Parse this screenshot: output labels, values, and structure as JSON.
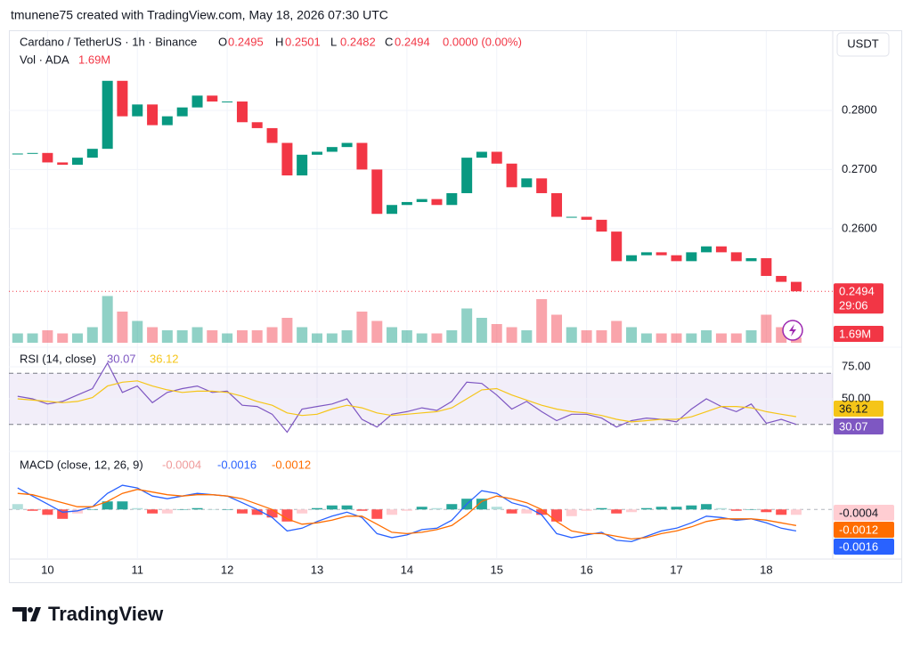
{
  "header": {
    "caption": "tmunene75 created with TradingView.com, May 18, 2026 07:30 UTC",
    "logo": "TradingView"
  },
  "chart_data": [
    {
      "type": "candlestick",
      "title": "Cardano / TetherUS · 1h · Binance",
      "currency": "USDT",
      "ohlc": [
        {
          "key": "O",
          "value": 0.2495
        },
        {
          "key": "H",
          "value": 0.2501
        },
        {
          "key": "L",
          "value": 0.2482
        },
        {
          "key": "C",
          "value": 0.2494
        }
      ],
      "change": "0.0000 (0.00%)",
      "volume_title": "Vol · ADA",
      "volume_last_label": "1.69M",
      "countdown": "29:06",
      "x": [
        9.667,
        9.833,
        10,
        10.167,
        10.333,
        10.5,
        10.667,
        10.833,
        11,
        11.167,
        11.333,
        11.5,
        11.667,
        11.833,
        12,
        12.167,
        12.333,
        12.5,
        12.667,
        12.833,
        13,
        13.167,
        13.333,
        13.5,
        13.667,
        13.833,
        14,
        14.167,
        14.333,
        14.5,
        14.667,
        14.833,
        15,
        15.167,
        15.333,
        15.5,
        15.667,
        15.833,
        16,
        16.167,
        16.333,
        16.5,
        16.667,
        16.833,
        17,
        17.167,
        17.333,
        17.5,
        17.667,
        17.833,
        18,
        18.167,
        18.333
      ],
      "values": [
        0.2727,
        0.2728,
        0.2712,
        0.2708,
        0.272,
        0.2735,
        0.285,
        0.279,
        0.281,
        0.2775,
        0.279,
        0.2805,
        0.2825,
        0.2815,
        0.2815,
        0.278,
        0.277,
        0.2745,
        0.269,
        0.2725,
        0.273,
        0.2738,
        0.2745,
        0.27,
        0.2625,
        0.264,
        0.2645,
        0.265,
        0.264,
        0.266,
        0.272,
        0.273,
        0.271,
        0.267,
        0.2685,
        0.266,
        0.262,
        0.262,
        0.2615,
        0.2595,
        0.2545,
        0.2555,
        0.256,
        0.2555,
        0.2545,
        0.256,
        0.257,
        0.256,
        0.2545,
        0.255,
        0.252,
        0.251,
        0.2494
      ],
      "volume": [
        3,
        3,
        4,
        3,
        3,
        5,
        15,
        10,
        7,
        5,
        4,
        4,
        5,
        4,
        3,
        4,
        4,
        5,
        8,
        5,
        3,
        3,
        4,
        10,
        7,
        5,
        4,
        3,
        3,
        4,
        11,
        8,
        6,
        5,
        4,
        14,
        9,
        5,
        4,
        4,
        7,
        5,
        3,
        3,
        3,
        3,
        4,
        3,
        3,
        4,
        9,
        5,
        1.69
      ],
      "up_color": "#089981",
      "down_color": "#f23645",
      "xlim": [
        9.57,
        18.74
      ],
      "xticks": [
        10,
        11,
        12,
        13,
        14,
        15,
        16,
        17,
        18
      ],
      "ylim": [
        0.2407,
        0.2934
      ],
      "yticks": [
        {
          "value": 0.28,
          "label": "0.2800"
        },
        {
          "value": 0.27,
          "label": "0.2700"
        },
        {
          "value": 0.26,
          "label": "0.2600"
        }
      ],
      "grid": true
    },
    {
      "type": "rsi",
      "title": "RSI (14, close)",
      "ylim": [
        13.9,
        86.8
      ],
      "yticks": [
        {
          "value": 75,
          "label": "75.00"
        },
        {
          "value": 50,
          "label": "50.00"
        }
      ],
      "bands": [
        70,
        30
      ],
      "series": [
        {
          "color": "#7e57c2",
          "values": [
            52,
            50,
            46,
            48,
            53,
            58,
            78,
            55,
            60,
            47,
            55,
            58,
            60,
            55,
            56,
            45,
            44,
            38,
            24,
            42,
            44,
            46,
            50,
            34,
            28,
            38,
            40,
            43,
            41,
            48,
            63,
            62,
            53,
            42,
            48,
            40,
            33,
            38,
            38,
            35,
            28,
            33,
            35,
            34,
            32,
            42,
            50,
            44,
            40,
            46,
            31,
            34,
            30.07
          ]
        },
        {
          "color": "#f5c518",
          "values": [
            50,
            49,
            48,
            47,
            48,
            51,
            60,
            63,
            64,
            60,
            57,
            55,
            56,
            56,
            55,
            52,
            48,
            45,
            39,
            37,
            38,
            42,
            45,
            43,
            39,
            37,
            38,
            39,
            40,
            43,
            50,
            57,
            58,
            53,
            49,
            45,
            42,
            40,
            39,
            37,
            34,
            32,
            33,
            34,
            34,
            36,
            40,
            44,
            44,
            43,
            40,
            38,
            36.12
          ]
        }
      ]
    },
    {
      "type": "macd",
      "title": "MACD (close, 12, 26, 9)",
      "ylim": [
        -0.0037,
        0.0038
      ],
      "series": [
        {
          "color": "#ef9a9a",
          "values": [
            0.0004,
            -0.0001,
            -0.0004,
            -0.0007,
            -0.0003,
            0,
            0.0006,
            0.0006,
            0.0001,
            -0.0003,
            -0.0003,
            0,
            0.0001,
            0,
            0,
            -0.0003,
            -0.0004,
            -0.0006,
            -0.0009,
            -0.0003,
            0.0001,
            0.0003,
            0.0003,
            -0.0001,
            -0.0007,
            -0.0004,
            -0.0001,
            0.0002,
            0.0001,
            0.0004,
            0.0008,
            0.0008,
            0.0002,
            -0.0003,
            -0.0003,
            -0.0004,
            -0.0009,
            -0.0005,
            -0.0001,
            0.0001,
            -0.0003,
            -0.0002,
            0.0001,
            0.0002,
            0.0002,
            0.0003,
            0.0004,
            0.0001,
            -0.0001,
            0,
            -0.0002,
            -0.0004,
            -0.0004
          ]
        },
        {
          "color": "#2962ff",
          "values": [
            0.0016,
            0.001,
            0.0004,
            -0.0002,
            -0.0001,
            0.0002,
            0.0012,
            0.0018,
            0.0016,
            0.001,
            0.0008,
            0.001,
            0.0012,
            0.0011,
            0.001,
            0.0005,
            0,
            -0.0006,
            -0.0016,
            -0.0014,
            -0.0009,
            -0.0005,
            -0.0002,
            -0.0006,
            -0.0018,
            -0.0021,
            -0.0019,
            -0.0015,
            -0.0014,
            -0.0008,
            0.0004,
            0.0014,
            0.0012,
            0.0005,
            0.0002,
            -0.0004,
            -0.0018,
            -0.0021,
            -0.0019,
            -0.0017,
            -0.0023,
            -0.0024,
            -0.002,
            -0.0016,
            -0.0014,
            -0.001,
            -0.0005,
            -0.0006,
            -0.0008,
            -0.0007,
            -0.001,
            -0.0014,
            -0.0016
          ]
        },
        {
          "color": "#ff6d00",
          "values": [
            0.0012,
            0.0011,
            0.0008,
            0.0005,
            0.0002,
            0.0002,
            0.0006,
            0.0012,
            0.0015,
            0.0013,
            0.0011,
            0.001,
            0.0011,
            0.0011,
            0.001,
            0.0008,
            0.0004,
            0,
            -0.0007,
            -0.0011,
            -0.001,
            -0.0008,
            -0.0005,
            -0.0005,
            -0.0011,
            -0.0017,
            -0.0018,
            -0.0017,
            -0.0015,
            -0.0012,
            -0.0004,
            0.0006,
            0.001,
            0.0008,
            0.0005,
            0,
            -0.0009,
            -0.0016,
            -0.0018,
            -0.0018,
            -0.002,
            -0.0022,
            -0.0021,
            -0.0018,
            -0.0016,
            -0.0013,
            -0.0009,
            -0.0007,
            -0.0007,
            -0.0007,
            -0.0008,
            -0.001,
            -0.0012
          ]
        }
      ]
    }
  ]
}
